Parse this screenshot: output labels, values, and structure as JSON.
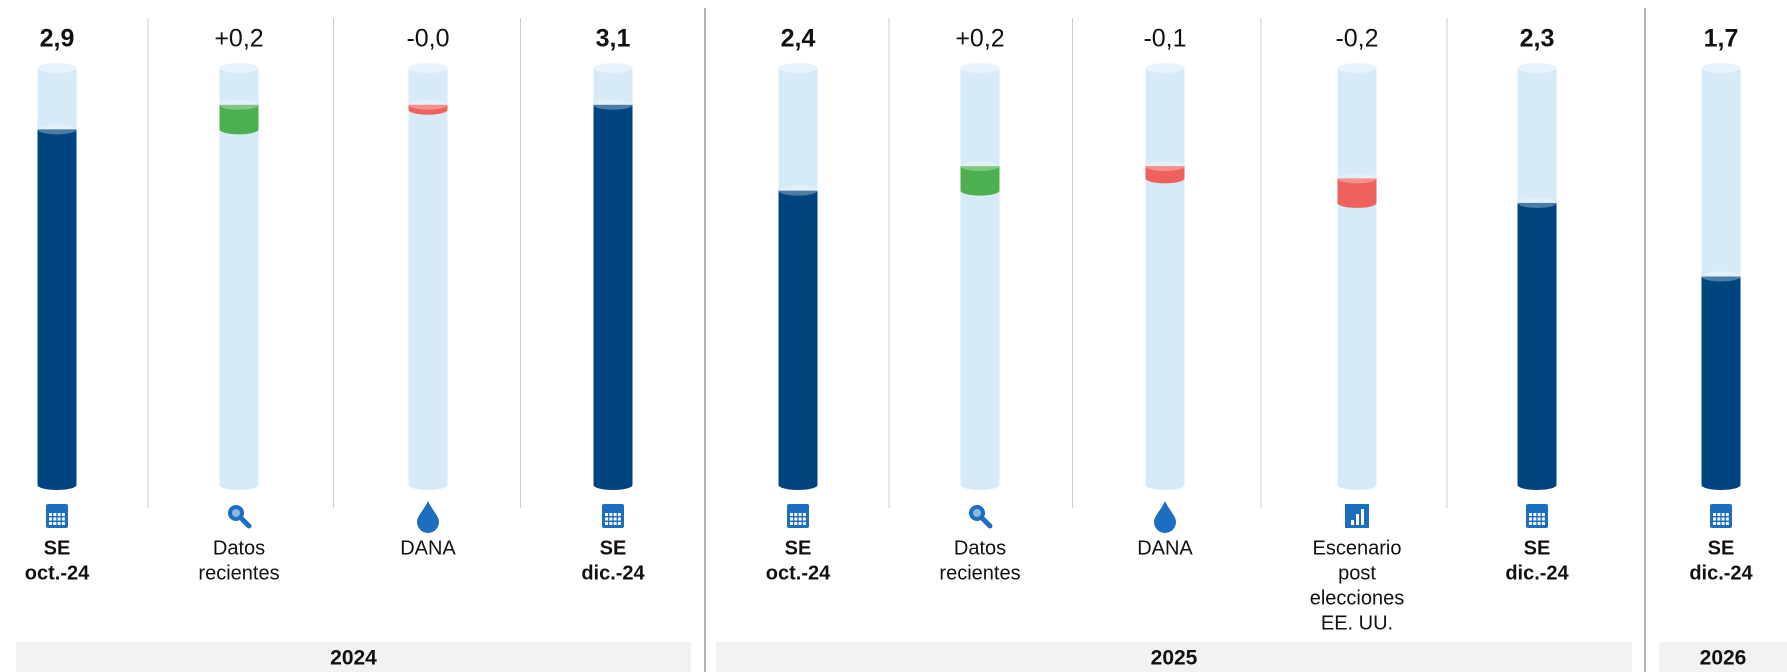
{
  "chart_data": {
    "type": "waterfall",
    "ylim": [
      0,
      3.4
    ],
    "colors": {
      "total": "#00457f",
      "increase": "#4caf50",
      "decrease": "#f0605d",
      "tube": "#d6eaf8"
    },
    "groups": [
      {
        "name": "2024",
        "items": [
          {
            "label": [
              "SE",
              "oct.-24"
            ],
            "value": 2.9,
            "value_label": "2,9",
            "total": true
          },
          {
            "label": [
              "Datos",
              "recientes"
            ],
            "value": 0.2,
            "value_label": "+0,2",
            "total": false
          },
          {
            "label": [
              "DANA"
            ],
            "value": -0.04,
            "value_label": "-0,0",
            "total": false
          },
          {
            "label": [
              "SE",
              "dic.-24"
            ],
            "value": 3.1,
            "value_label": "3,1",
            "total": true
          }
        ]
      },
      {
        "name": "2025",
        "items": [
          {
            "label": [
              "SE",
              "oct.-24"
            ],
            "value": 2.4,
            "value_label": "2,4",
            "total": true
          },
          {
            "label": [
              "Datos",
              "recientes"
            ],
            "value": 0.2,
            "value_label": "+0,2",
            "total": false
          },
          {
            "label": [
              "DANA"
            ],
            "value": -0.1,
            "value_label": "-0,1",
            "total": false
          },
          {
            "label": [
              "Escenario",
              "post",
              "elecciones",
              "EE. UU."
            ],
            "value": -0.2,
            "value_label": "-0,2",
            "total": false
          },
          {
            "label": [
              "SE",
              "dic.-24"
            ],
            "value": 2.3,
            "value_label": "2,3",
            "total": true
          }
        ]
      },
      {
        "name": "2026",
        "items": [
          {
            "label": [
              "SE",
              "dic.-24"
            ],
            "value": 1.7,
            "value_label": "1,7",
            "total": true
          }
        ]
      }
    ]
  }
}
